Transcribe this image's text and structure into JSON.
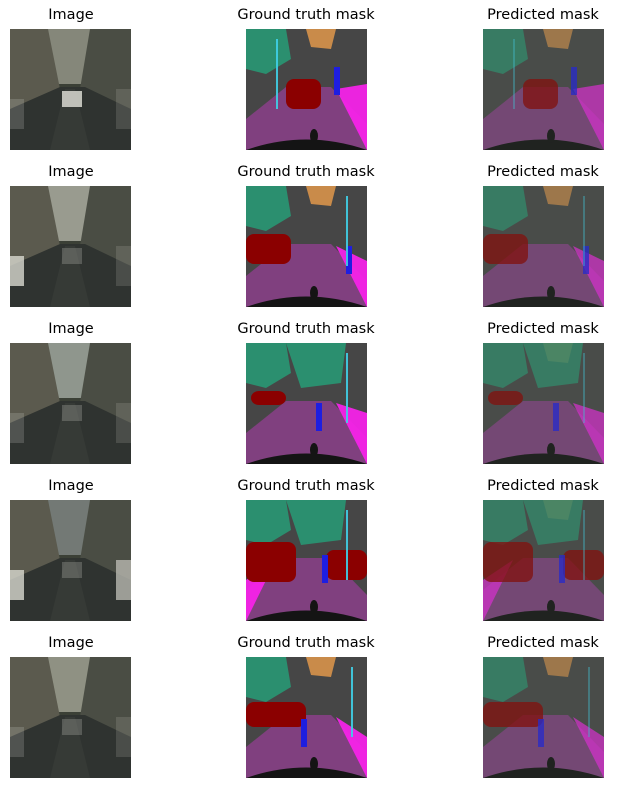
{
  "columns": [
    "Image",
    "Ground truth mask",
    "Predicted mask"
  ],
  "rows": [
    {
      "id": 1
    },
    {
      "id": 2
    },
    {
      "id": 3
    },
    {
      "id": 4
    },
    {
      "id": 5
    }
  ],
  "colors": {
    "road": "#80407f",
    "sidewalk": "#f423e8",
    "building": "#464646",
    "vegetation": "#2b8f6f",
    "sky": "#c98b4a",
    "car": "#8b0000",
    "person": "#1e1ee0",
    "pole": "#3fd0e8",
    "ego_vehicle": "#141414"
  }
}
